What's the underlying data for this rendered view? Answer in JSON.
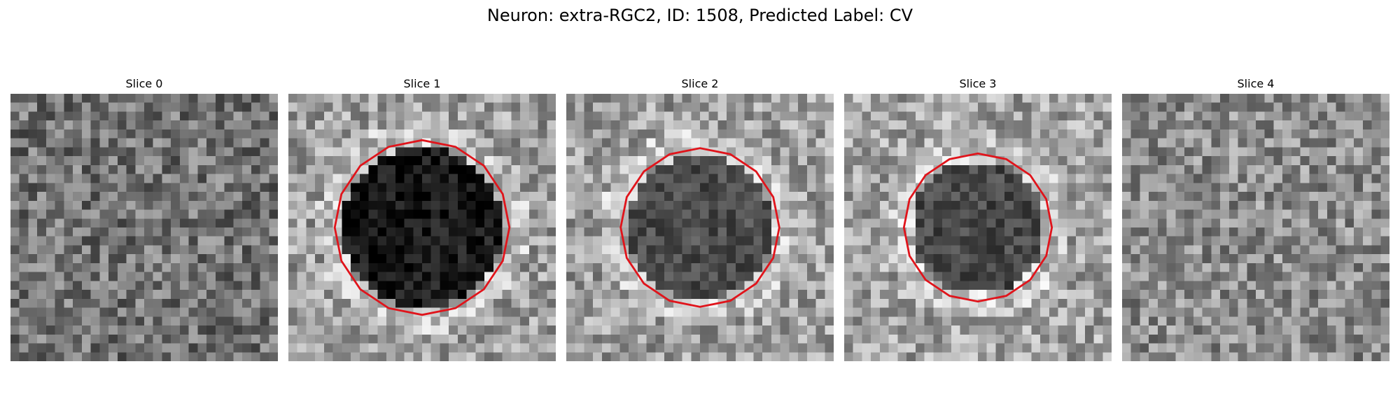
{
  "figure": {
    "title": "Neuron: extra-RGC2, ID: 1508, Predicted Label: CV"
  },
  "colors": {
    "contour": "#e0141b"
  },
  "panels": [
    {
      "title": "Slice 0",
      "has_contour": false,
      "seed": 11,
      "base_level": 0.45,
      "blob_level": 0.0,
      "blob_radius": 0.0
    },
    {
      "title": "Slice 1",
      "has_contour": true,
      "seed": 23,
      "base_level": 0.62,
      "blob_level": 0.1,
      "blob_radius": 0.3
    },
    {
      "title": "Slice 2",
      "has_contour": true,
      "seed": 37,
      "base_level": 0.62,
      "blob_level": 0.3,
      "blob_radius": 0.27
    },
    {
      "title": "Slice 3",
      "has_contour": true,
      "seed": 41,
      "base_level": 0.64,
      "blob_level": 0.28,
      "blob_radius": 0.25
    },
    {
      "title": "Slice 4",
      "has_contour": false,
      "seed": 53,
      "base_level": 0.55,
      "blob_level": 0.0,
      "blob_radius": 0.0
    }
  ]
}
